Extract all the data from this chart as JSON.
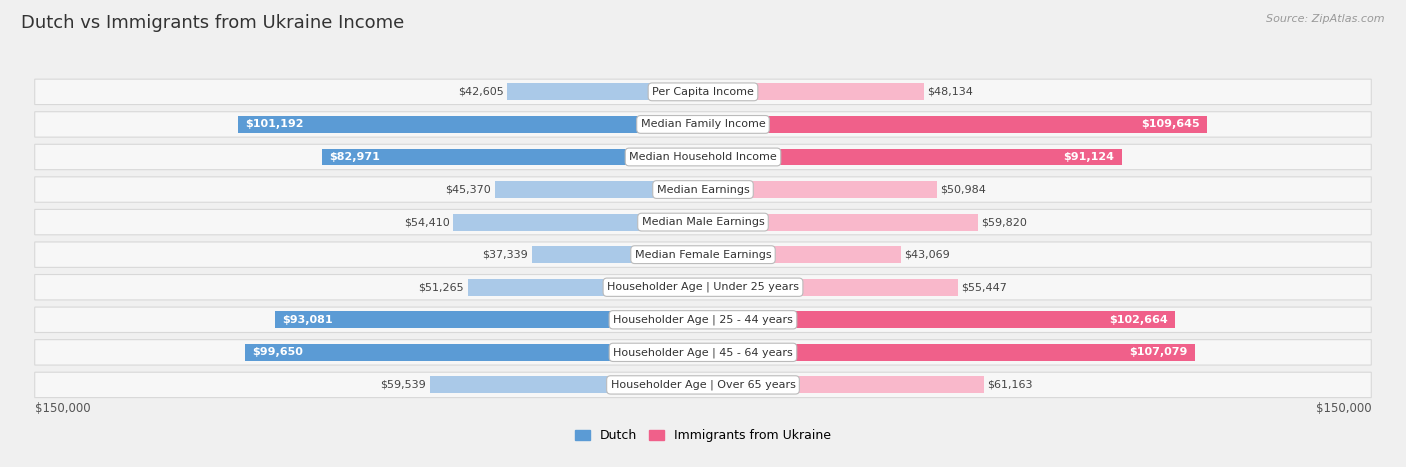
{
  "title": "Dutch vs Immigrants from Ukraine Income",
  "source": "Source: ZipAtlas.com",
  "categories": [
    "Per Capita Income",
    "Median Family Income",
    "Median Household Income",
    "Median Earnings",
    "Median Male Earnings",
    "Median Female Earnings",
    "Householder Age | Under 25 years",
    "Householder Age | 25 - 44 years",
    "Householder Age | 45 - 64 years",
    "Householder Age | Over 65 years"
  ],
  "dutch_values": [
    42605,
    101192,
    82971,
    45370,
    54410,
    37339,
    51265,
    93081,
    99650,
    59539
  ],
  "ukraine_values": [
    48134,
    109645,
    91124,
    50984,
    59820,
    43069,
    55447,
    102664,
    107079,
    61163
  ],
  "dutch_labels": [
    "$42,605",
    "$101,192",
    "$82,971",
    "$45,370",
    "$54,410",
    "$37,339",
    "$51,265",
    "$93,081",
    "$99,650",
    "$59,539"
  ],
  "ukraine_labels": [
    "$48,134",
    "$109,645",
    "$91,124",
    "$50,984",
    "$59,820",
    "$43,069",
    "$55,447",
    "$102,664",
    "$107,079",
    "$61,163"
  ],
  "dutch_color_light": "#aac9e8",
  "dutch_color_dark": "#5b9bd5",
  "ukraine_color_light": "#f9b8cb",
  "ukraine_color_dark": "#f0608a",
  "dutch_inside_threshold": 70000,
  "ukraine_inside_threshold": 70000,
  "max_value": 150000,
  "bg_color": "#f0f0f0",
  "row_bg": "#f7f7f7",
  "row_border": "#d8d8d8",
  "legend_dutch": "Dutch",
  "legend_ukraine": "Immigrants from Ukraine",
  "xlabel_left": "$150,000",
  "xlabel_right": "$150,000",
  "title_fontsize": 13,
  "label_fontsize": 8,
  "category_fontsize": 8
}
